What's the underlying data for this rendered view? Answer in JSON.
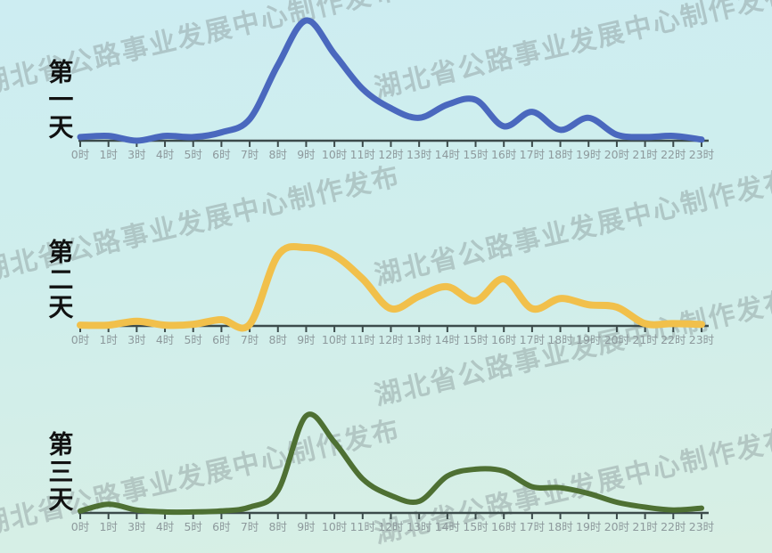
{
  "page": {
    "background_top": "#cdedf2",
    "background_bottom": "#d8efe4"
  },
  "watermark": {
    "text": "湖北省公路事业发展中心制作发布",
    "color": "#8a9899"
  },
  "colors": {
    "axis": "#3c4b4b",
    "tick_label": "#8d999c",
    "day_label": "#111111"
  },
  "chart_data": {
    "type": "line",
    "title": "",
    "xlabel": "",
    "ylabel": "",
    "grid": false,
    "legend_position": "left-vertical-labels",
    "layout": "three stacked hourly curves, one axis per day",
    "ylim": [
      0,
      100
    ],
    "categories": [
      "0时",
      "1时",
      "3时",
      "4时",
      "5时",
      "6时",
      "7时",
      "8时",
      "9时",
      "10时",
      "11时",
      "12时",
      "13时",
      "14时",
      "15时",
      "16时",
      "17时",
      "18时",
      "19时",
      "20时",
      "21时",
      "22时",
      "23时"
    ],
    "series": [
      {
        "name": "第一天",
        "color": "#4a68be",
        "values": [
          3,
          4,
          0,
          4,
          3,
          7,
          18,
          63,
          100,
          72,
          43,
          27,
          19,
          30,
          34,
          12,
          24,
          9,
          19,
          5,
          3,
          4,
          1
        ]
      },
      {
        "name": "第二天",
        "color": "#f1c04b",
        "values": [
          1,
          1,
          6,
          1,
          2,
          8,
          2,
          90,
          100,
          90,
          60,
          22,
          38,
          50,
          32,
          60,
          22,
          35,
          27,
          24,
          3,
          3,
          2
        ]
      },
      {
        "name": "第三天",
        "color": "#4e7033",
        "values": [
          2,
          9,
          3,
          1,
          1,
          2,
          6,
          23,
          100,
          73,
          35,
          18,
          12,
          38,
          45,
          43,
          27,
          26,
          20,
          11,
          6,
          3,
          5
        ]
      }
    ]
  }
}
